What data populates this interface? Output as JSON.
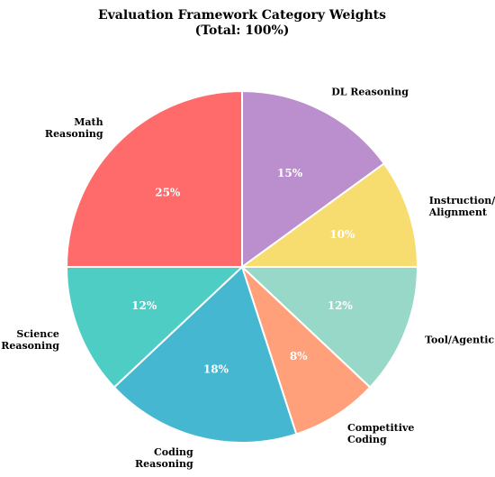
{
  "chart_data": {
    "type": "pie",
    "title": [
      "Evaluation Framework Category Weights",
      "(Total: 100%)"
    ],
    "start_angle_deg": 90,
    "direction": "clockwise",
    "slices": [
      {
        "label": [
          "DL Reasoning"
        ],
        "value": 15,
        "pct": "15%",
        "color": "#BB8FCE"
      },
      {
        "label": [
          "Instruction/",
          "Alignment"
        ],
        "value": 10,
        "pct": "10%",
        "color": "#F7DC6F"
      },
      {
        "label": [
          "Tool/Agentic"
        ],
        "value": 12,
        "pct": "12%",
        "color": "#98D8C8"
      },
      {
        "label": [
          "Competitive",
          "Coding"
        ],
        "value": 8,
        "pct": "8%",
        "color": "#FFA07A"
      },
      {
        "label": [
          "Coding",
          "Reasoning"
        ],
        "value": 18,
        "pct": "18%",
        "color": "#45B7D1"
      },
      {
        "label": [
          "Science",
          "Reasoning"
        ],
        "value": 12,
        "pct": "12%",
        "color": "#4ECDC4"
      },
      {
        "label": [
          "Math",
          "Reasoning"
        ],
        "value": 25,
        "pct": "25%",
        "color": "#FF6B6B"
      }
    ]
  }
}
